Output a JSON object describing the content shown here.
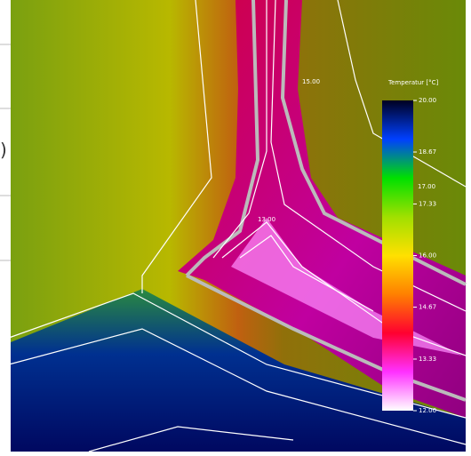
{
  "left_fragment": ")",
  "chart_data": {
    "type": "heatmap",
    "colorbar": {
      "title": "Temperatur [°C]",
      "lim": [
        12,
        20
      ],
      "ticks": [
        {
          "value": 20,
          "label": "20.00"
        },
        {
          "value": 18.67,
          "label": "18.67"
        },
        {
          "value": 17.33,
          "label": "17.33"
        },
        {
          "value": 16,
          "label": "16.00"
        },
        {
          "value": 14.67,
          "label": "14.67"
        },
        {
          "value": 13.33,
          "label": "13.33"
        },
        {
          "value": 12,
          "label": "12.00"
        }
      ],
      "colors": [
        "#ffffff",
        "#ff30ff",
        "#ff0030",
        "#ff8000",
        "#ffe000",
        "#a0e000",
        "#00e000",
        "#0040ff",
        "#000020"
      ]
    },
    "contour_labels": [
      "15.00",
      "17.00",
      "13.00"
    ]
  }
}
